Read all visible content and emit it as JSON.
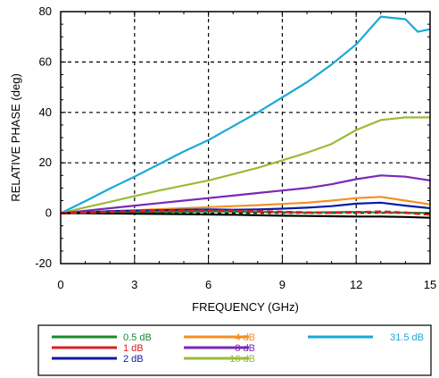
{
  "chart_data": {
    "type": "line",
    "xlabel": "FREQUENCY (GHz)",
    "ylabel": "RELATIVE PHASE (deg)",
    "xlim": [
      0,
      15
    ],
    "ylim": [
      -20,
      80
    ],
    "xticks": [
      "0",
      "3",
      "6",
      "9",
      "12",
      "15"
    ],
    "yticks": [
      "-20",
      "0",
      "20",
      "40",
      "60",
      "80"
    ],
    "grid": "dashed",
    "legend_position": "bottom",
    "series": [
      {
        "name": "0.5 dB",
        "color": "#1a8a2a",
        "x": [
          0,
          1,
          2,
          3,
          4,
          5,
          6,
          7,
          8,
          9,
          10,
          11,
          12,
          13,
          14,
          15
        ],
        "y": [
          0,
          0.1,
          0.2,
          0.3,
          0.5,
          0.6,
          0.7,
          0.6,
          0.5,
          0.4,
          0.3,
          0.4,
          0.5,
          0.3,
          0.2,
          0.1
        ]
      },
      {
        "name": "1 dB",
        "color": "#d42020",
        "x": [
          0,
          1,
          2,
          3,
          4,
          5,
          6,
          7,
          8,
          9,
          10,
          11,
          12,
          13,
          14,
          15
        ],
        "y": [
          0,
          0.3,
          0.5,
          0.7,
          0.9,
          1.0,
          1.0,
          0.9,
          0.7,
          0.5,
          0.3,
          0.2,
          0.4,
          0.6,
          0.2,
          -0.5
        ]
      },
      {
        "name": "2 dB",
        "color": "#0a1aa8",
        "x": [
          0,
          1,
          2,
          3,
          4,
          5,
          6,
          7,
          8,
          9,
          10,
          11,
          12,
          13,
          14,
          15
        ],
        "y": [
          0,
          0.4,
          0.8,
          1.0,
          1.2,
          1.4,
          1.5,
          1.4,
          1.5,
          1.8,
          2.2,
          2.8,
          3.8,
          4.2,
          3.0,
          2.0
        ]
      },
      {
        "name": "4 dB",
        "color": "#f39020",
        "x": [
          0,
          1,
          2,
          3,
          4,
          5,
          6,
          7,
          8,
          9,
          10,
          11,
          12,
          13,
          14,
          15
        ],
        "y": [
          0,
          0.4,
          0.8,
          1.2,
          1.6,
          2.0,
          2.4,
          2.8,
          3.2,
          3.7,
          4.2,
          5.0,
          6.0,
          6.5,
          5.0,
          3.5
        ]
      },
      {
        "name": "8 dB",
        "color": "#7a28b8",
        "x": [
          0,
          1,
          2,
          3,
          4,
          5,
          6,
          7,
          8,
          9,
          10,
          11,
          12,
          13,
          14,
          15
        ],
        "y": [
          0,
          1.0,
          2.0,
          3.0,
          4.0,
          5.0,
          6.0,
          7.0,
          8.0,
          9.0,
          10.0,
          11.5,
          13.5,
          15.0,
          14.5,
          13.0
        ]
      },
      {
        "name": "16 dB",
        "color": "#9abb38",
        "x": [
          0,
          1,
          2,
          3,
          4,
          5,
          6,
          7,
          8,
          9,
          10,
          11,
          12,
          13,
          14,
          15
        ],
        "y": [
          0,
          2.3,
          4.5,
          6.8,
          9.0,
          11.0,
          13.0,
          15.5,
          18.0,
          21.0,
          24.0,
          27.5,
          33.0,
          37.0,
          38.0,
          38.0
        ]
      },
      {
        "name": "31.5 dB",
        "color": "#1aa8d8",
        "x": [
          0,
          1,
          2,
          3,
          4,
          5,
          6,
          7,
          8,
          9,
          10,
          11,
          12,
          13,
          13.5,
          14,
          14.5,
          15
        ],
        "y": [
          0,
          4.8,
          9.8,
          14.5,
          19.5,
          24.5,
          29.0,
          34.5,
          40.0,
          46.0,
          52.0,
          59.0,
          67.0,
          78.0,
          77.5,
          77.0,
          72.0,
          73.0
        ]
      }
    ]
  },
  "black_curve": {
    "color": "#000000",
    "x": [
      0,
      1,
      2,
      3,
      4,
      5,
      6,
      7,
      8,
      9,
      10,
      11,
      12,
      13,
      14,
      15
    ],
    "y": [
      0,
      0.0,
      -0.1,
      -0.2,
      -0.3,
      -0.4,
      -0.5,
      -0.6,
      -0.8,
      -1.0,
      -1.1,
      -1.2,
      -1.3,
      -1.3,
      -1.5,
      -1.8
    ]
  }
}
